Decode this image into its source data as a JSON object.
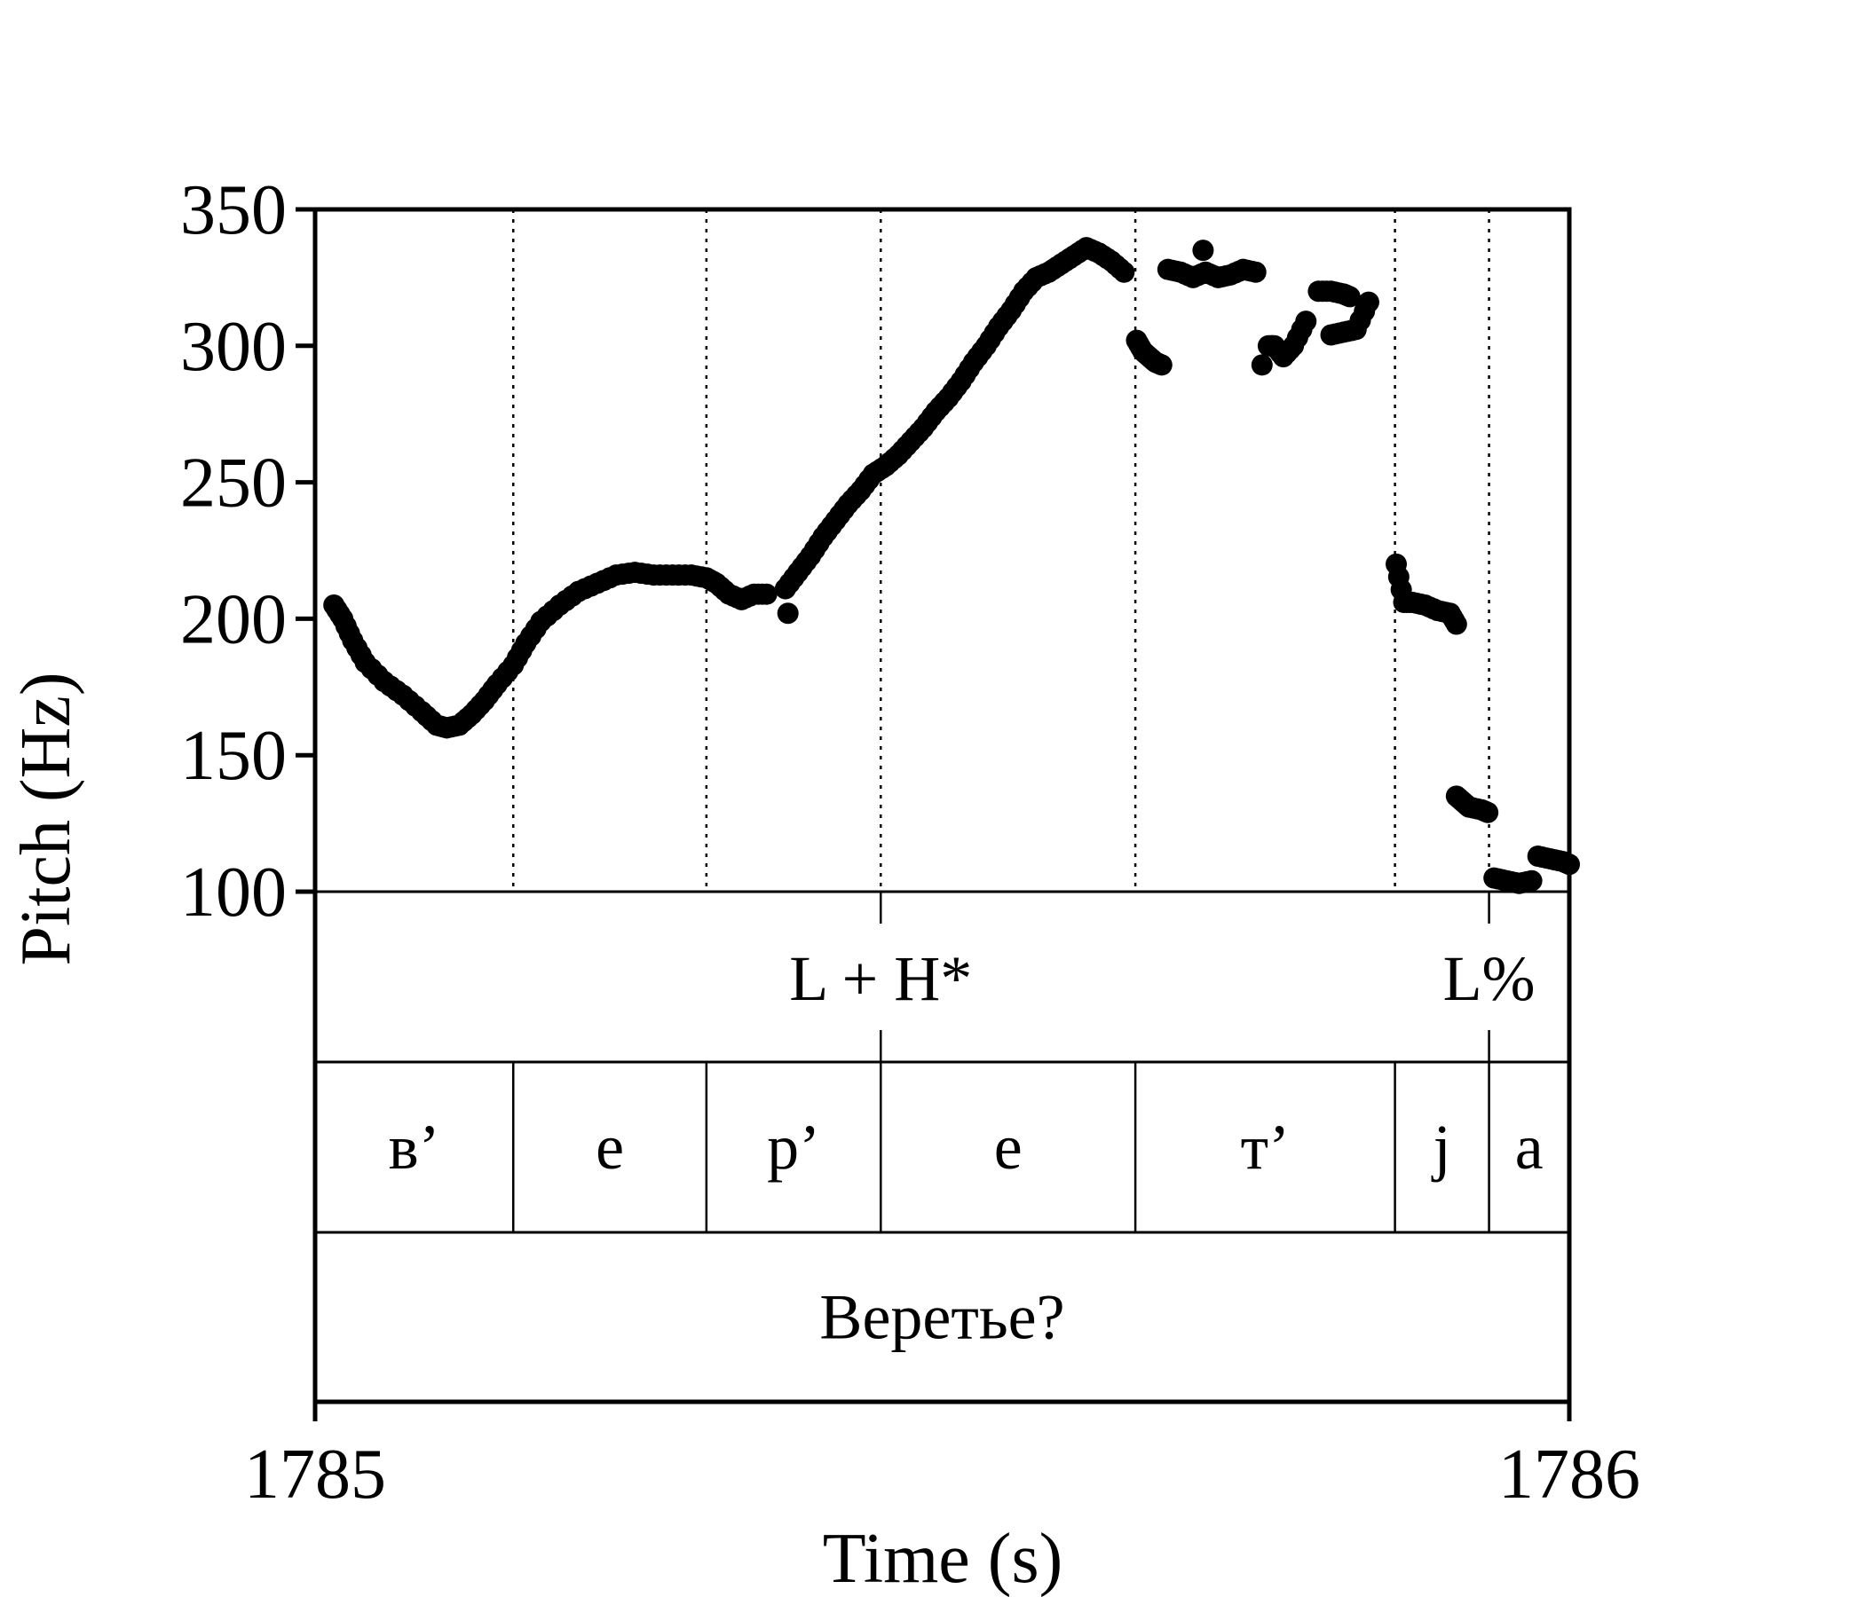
{
  "chart_data": {
    "type": "scatter",
    "xlabel": "Time (s)",
    "ylabel": "Pitch (Hz)",
    "xlim": [
      1785,
      1786
    ],
    "ylim": [
      100,
      350
    ],
    "x_ticks": [
      "1785",
      "1786"
    ],
    "y_ticks": [
      "100",
      "150",
      "200",
      "250",
      "300",
      "350"
    ],
    "grid": false,
    "boundaries": [
      1785.158,
      1785.312,
      1785.451,
      1785.654,
      1785.861,
      1785.936
    ],
    "tiers": {
      "tones": [
        {
          "label": "L + H*",
          "at": 1785.451
        },
        {
          "label": "L%",
          "at": 1785.936
        }
      ],
      "segments": [
        {
          "label": "в’",
          "start": 1785.0,
          "end": 1785.158
        },
        {
          "label": "е",
          "start": 1785.158,
          "end": 1785.312
        },
        {
          "label": "р’",
          "start": 1785.312,
          "end": 1785.451
        },
        {
          "label": "е",
          "start": 1785.451,
          "end": 1785.654
        },
        {
          "label": "т’",
          "start": 1785.654,
          "end": 1785.861
        },
        {
          "label": "j",
          "start": 1785.861,
          "end": 1785.936
        },
        {
          "label": "а",
          "start": 1785.936,
          "end": 1786.0
        }
      ],
      "word": "Веретье?"
    },
    "contours": [
      [
        [
          1785.015,
          205
        ],
        [
          1785.022,
          200
        ],
        [
          1785.03,
          192
        ],
        [
          1785.04,
          184
        ],
        [
          1785.055,
          177
        ],
        [
          1785.07,
          172
        ],
        [
          1785.085,
          166
        ],
        [
          1785.097,
          161
        ],
        [
          1785.105,
          160
        ],
        [
          1785.115,
          161
        ],
        [
          1785.125,
          165
        ],
        [
          1785.135,
          170
        ],
        [
          1785.145,
          176
        ],
        [
          1785.158,
          183
        ],
        [
          1785.168,
          191
        ],
        [
          1785.18,
          199
        ],
        [
          1785.195,
          205
        ],
        [
          1785.21,
          210
        ],
        [
          1785.225,
          213
        ],
        [
          1785.24,
          216
        ],
        [
          1785.255,
          217
        ],
        [
          1785.27,
          216
        ],
        [
          1785.285,
          216
        ],
        [
          1785.3,
          216
        ],
        [
          1785.312,
          215
        ],
        [
          1785.32,
          213
        ],
        [
          1785.33,
          209
        ],
        [
          1785.34,
          207
        ],
        [
          1785.35,
          209
        ],
        [
          1785.36,
          209
        ]
      ],
      [
        [
          1785.375,
          211
        ],
        [
          1785.385,
          217
        ],
        [
          1785.395,
          223
        ],
        [
          1785.405,
          230
        ],
        [
          1785.415,
          236
        ],
        [
          1785.425,
          242
        ],
        [
          1785.435,
          247
        ],
        [
          1785.445,
          253
        ],
        [
          1785.455,
          256
        ],
        [
          1785.465,
          260
        ],
        [
          1785.475,
          265
        ],
        [
          1785.485,
          270
        ],
        [
          1785.495,
          276
        ],
        [
          1785.505,
          281
        ],
        [
          1785.515,
          287
        ],
        [
          1785.525,
          294
        ],
        [
          1785.535,
          300
        ],
        [
          1785.545,
          307
        ],
        [
          1785.555,
          313
        ],
        [
          1785.565,
          320
        ],
        [
          1785.575,
          325
        ],
        [
          1785.585,
          327
        ],
        [
          1785.595,
          330
        ],
        [
          1785.605,
          333
        ],
        [
          1785.615,
          336
        ],
        [
          1785.625,
          334
        ],
        [
          1785.635,
          331
        ],
        [
          1785.645,
          327
        ]
      ],
      [
        [
          1785.655,
          302
        ],
        [
          1785.66,
          298
        ],
        [
          1785.665,
          296
        ],
        [
          1785.67,
          294
        ],
        [
          1785.675,
          293
        ]
      ],
      [
        [
          1785.68,
          328
        ],
        [
          1785.69,
          327
        ],
        [
          1785.7,
          325
        ],
        [
          1785.71,
          327
        ],
        [
          1785.72,
          325
        ],
        [
          1785.73,
          326
        ],
        [
          1785.74,
          328
        ],
        [
          1785.75,
          327
        ]
      ],
      [
        [
          1785.76,
          300
        ],
        [
          1785.765,
          300
        ],
        [
          1785.772,
          296
        ],
        [
          1785.78,
          300
        ],
        [
          1785.79,
          309
        ]
      ],
      [
        [
          1785.8,
          320
        ],
        [
          1785.81,
          320
        ],
        [
          1785.82,
          319
        ],
        [
          1785.825,
          318
        ]
      ],
      [
        [
          1785.81,
          304
        ],
        [
          1785.82,
          305
        ],
        [
          1785.83,
          306
        ],
        [
          1785.84,
          316
        ]
      ],
      [
        [
          1785.862,
          220
        ],
        [
          1785.868,
          206
        ],
        [
          1785.875,
          206
        ],
        [
          1785.885,
          205
        ],
        [
          1785.895,
          203
        ],
        [
          1785.905,
          202
        ],
        [
          1785.91,
          198
        ]
      ],
      [
        [
          1785.91,
          135
        ],
        [
          1785.915,
          133
        ],
        [
          1785.92,
          131
        ],
        [
          1785.93,
          130
        ],
        [
          1785.935,
          129
        ]
      ],
      [
        [
          1785.94,
          105
        ],
        [
          1785.95,
          104
        ],
        [
          1785.96,
          103
        ],
        [
          1785.97,
          104
        ]
      ],
      [
        [
          1785.975,
          113
        ],
        [
          1785.985,
          112
        ],
        [
          1785.995,
          111
        ],
        [
          1786.0,
          110
        ]
      ]
    ],
    "stray_points": [
      [
        1785.377,
        202
      ],
      [
        1785.708,
        335
      ],
      [
        1785.755,
        293
      ],
      [
        1785.763,
        300
      ]
    ]
  }
}
